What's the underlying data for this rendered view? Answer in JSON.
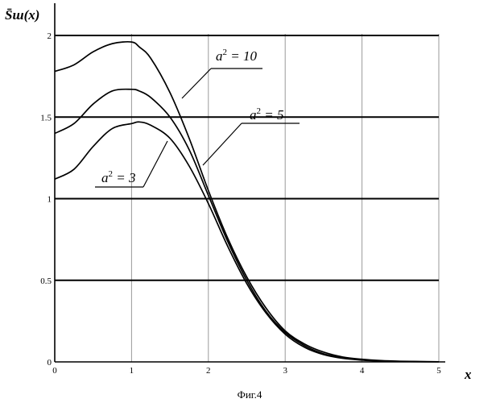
{
  "chart_data": {
    "type": "line",
    "title": "",
    "ylabel": "S̄ш(x)",
    "xlabel": "x",
    "caption": "Фиг.4",
    "xlim": [
      0,
      5
    ],
    "ylim": [
      0,
      2
    ],
    "xticks": [
      "0",
      "1",
      "2",
      "3",
      "4",
      "5"
    ],
    "yticks": [
      "0",
      "0.5",
      "1",
      "1.5",
      "2"
    ],
    "grid": true,
    "x": [
      0,
      0.25,
      0.5,
      0.75,
      1,
      1.1,
      1.25,
      1.5,
      1.75,
      2,
      2.25,
      2.5,
      2.75,
      3,
      3.25,
      3.5,
      3.75,
      4,
      4.25,
      4.5,
      4.75,
      5
    ],
    "series": [
      {
        "name": "a² = 10",
        "label_base": "a",
        "label_exp": "2",
        "label_rest": " = 10",
        "values": [
          1.78,
          1.82,
          1.9,
          1.95,
          1.96,
          1.93,
          1.86,
          1.65,
          1.37,
          1.05,
          0.76,
          0.52,
          0.33,
          0.19,
          0.11,
          0.06,
          0.03,
          0.016,
          0.008,
          0.004,
          0.002,
          0.001
        ]
      },
      {
        "name": "a² = 5",
        "label_base": "a",
        "label_exp": "2",
        "label_rest": " = 5",
        "values": [
          1.4,
          1.46,
          1.58,
          1.66,
          1.67,
          1.66,
          1.62,
          1.5,
          1.3,
          1.02,
          0.74,
          0.5,
          0.31,
          0.18,
          0.1,
          0.05,
          0.025,
          0.012,
          0.006,
          0.003,
          0.0015,
          0.001
        ]
      },
      {
        "name": "a² = 3",
        "label_base": "a",
        "label_exp": "2",
        "label_rest": " = 3",
        "values": [
          1.12,
          1.18,
          1.32,
          1.43,
          1.46,
          1.47,
          1.45,
          1.37,
          1.2,
          0.97,
          0.71,
          0.48,
          0.3,
          0.17,
          0.09,
          0.045,
          0.022,
          0.011,
          0.005,
          0.0025,
          0.0012,
          0.001
        ]
      }
    ]
  }
}
